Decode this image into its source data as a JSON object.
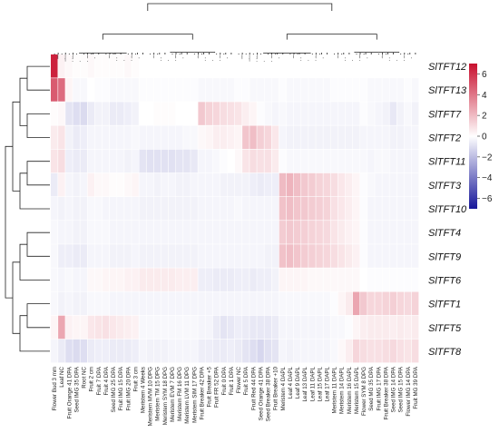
{
  "chart_data": {
    "type": "heatmap",
    "rows": [
      "SlTFT12",
      "SlTFT13",
      "SlTFT7",
      "SlTFT2",
      "SlTFT11",
      "SlTFT3",
      "SlTFT10",
      "SlTFT4",
      "SlTFT9",
      "SlTFT6",
      "SlTFT1",
      "SlTFT5",
      "SlTFT8"
    ],
    "columns": [
      "Flower Bud 3 mm",
      "Leaf NC",
      "Fruit Orange 41 DPA",
      "Seed IMG 35 DPA",
      "Root NC",
      "Fruit 2 cm",
      "Fruit 7 DPA",
      "Fruit 4 DPA",
      "Seed IMG 25 DPA",
      "Fruit IMG 15 DPA",
      "Fruit IMG 20 DPA",
      "Fruit 3 cm",
      "Meristem 4 Weeks",
      "Meristem MVM 10 DPG",
      "Meristem TM 15 DPG",
      "Meristem SYM 18 DPG",
      "Meristem EVM 7 DPG",
      "Meristem FM 16 DPG",
      "Meristem LVM 11 DPG",
      "Meristem SIM 17 DPG",
      "Fruit Breaker 42 DPA",
      "Fruit Breaker +5",
      "Fruit FR 52 DPA",
      "Fruit 0 DPA",
      "Fruit 1 DPA",
      "Flower NC",
      "Fruit 5 DPA",
      "Fruit Red 44 DPA",
      "Seed Orange 41 DPA",
      "Seed Breaker 38 DPA",
      "Fruit Breaker +10",
      "Meristem 4 DAPL",
      "Leaf 4 DAPL",
      "Leaf 9 DAPL",
      "Leaf 13 DAPL",
      "Leaf 11 DAPL",
      "Leaf 15 DAPL",
      "Leaf 17 DAPL",
      "Meristem 11 DAPL",
      "Meristem 14 DAPL",
      "Meristem 16 DAPL",
      "Meristem 15 DAPL",
      "Flower SYM 8 DPG",
      "Seed MG 35 DPA",
      "Fruit IMG 17 DPA",
      "Fruit Breaker 38 DPA",
      "Seed IMG 14 DPA",
      "Seed IMG 15 DPA",
      "Flower IMG 14 DPA",
      "Fruit MG 39 DPA"
    ],
    "values": [
      [
        6.5,
        0.4,
        0.2,
        0.1,
        0.1,
        0.2,
        0.1,
        0.1,
        0.1,
        0.1,
        0.2,
        0.1,
        0.0,
        0.0,
        0.0,
        0.0,
        0.0,
        0.0,
        0.0,
        0.0,
        0.0,
        0.0,
        0.0,
        0.0,
        0.0,
        0.0,
        0.0,
        0.0,
        0.0,
        0.0,
        0.0,
        0.0,
        0.0,
        0.0,
        0.0,
        0.0,
        0.0,
        0.0,
        0.0,
        0.0,
        0.0,
        0.0,
        0.0,
        0.0,
        0.0,
        0.0,
        0.0,
        0.0,
        0.0,
        0.0
      ],
      [
        4.8,
        4.3,
        0.3,
        -0.2,
        -0.2,
        0.0,
        -0.1,
        -0.1,
        -0.2,
        -0.2,
        -0.2,
        -0.2,
        -0.1,
        -0.1,
        -0.1,
        -0.1,
        -0.1,
        -0.1,
        -0.1,
        -0.1,
        -0.2,
        -0.2,
        -0.2,
        -0.2,
        -0.2,
        -0.1,
        -0.1,
        -0.2,
        -0.2,
        -0.2,
        -0.2,
        -0.1,
        -0.2,
        -0.2,
        -0.2,
        -0.2,
        -0.2,
        -0.2,
        -0.1,
        -0.1,
        -0.1,
        -0.1,
        -0.1,
        -0.2,
        -0.2,
        -0.2,
        -0.2,
        -0.2,
        -0.1,
        -0.2
      ],
      [
        0.1,
        0.2,
        -0.8,
        -1.0,
        -1.1,
        -0.6,
        -0.4,
        -0.4,
        -0.6,
        -0.6,
        -0.5,
        -0.4,
        0.0,
        0.0,
        0.1,
        0.1,
        0.1,
        0.0,
        0.0,
        0.0,
        1.6,
        1.3,
        1.2,
        1.0,
        0.9,
        0.8,
        0.5,
        0.3,
        -0.1,
        -0.2,
        -0.3,
        -0.2,
        -0.3,
        -0.3,
        -0.3,
        -0.3,
        -0.3,
        -0.3,
        -0.3,
        -0.3,
        -0.3,
        -0.3,
        -0.1,
        -0.2,
        -0.3,
        -0.4,
        -0.7,
        -0.4,
        -0.2,
        -0.4
      ],
      [
        0.6,
        0.8,
        -0.4,
        -0.6,
        -0.5,
        -0.3,
        -0.3,
        -0.3,
        -0.3,
        -0.3,
        -0.3,
        -0.2,
        -0.3,
        -0.3,
        -0.3,
        -0.3,
        -0.3,
        -0.3,
        -0.2,
        -0.2,
        0.2,
        0.3,
        0.5,
        0.5,
        0.4,
        0.3,
        1.7,
        1.9,
        1.4,
        1.2,
        0.7,
        -0.3,
        -0.4,
        -0.4,
        -0.4,
        -0.4,
        -0.4,
        -0.4,
        -0.4,
        -0.4,
        -0.4,
        -0.4,
        -0.3,
        -0.3,
        -0.3,
        -0.3,
        -0.4,
        -0.4,
        -0.3,
        -0.3
      ],
      [
        0.8,
        1.0,
        -0.5,
        -0.6,
        -0.6,
        -0.3,
        -0.3,
        -0.3,
        -0.3,
        -0.3,
        -0.4,
        -0.3,
        -0.8,
        -0.9,
        -0.9,
        -0.9,
        -0.9,
        -0.8,
        -0.8,
        -0.7,
        -0.3,
        -0.3,
        -0.2,
        -0.1,
        0.0,
        0.2,
        0.8,
        1.0,
        0.9,
        0.9,
        0.6,
        -0.1,
        -0.2,
        -0.2,
        -0.2,
        -0.2,
        -0.2,
        -0.2,
        -0.2,
        -0.2,
        -0.2,
        -0.2,
        -0.2,
        -0.3,
        -0.2,
        -0.2,
        -0.3,
        -0.3,
        -0.3,
        -0.3
      ],
      [
        -0.6,
        0.4,
        -0.3,
        -0.4,
        -0.3,
        0.4,
        0.2,
        0.2,
        0.1,
        0.1,
        0.2,
        0.3,
        -0.3,
        -0.3,
        -0.4,
        -0.3,
        -0.3,
        -0.4,
        -0.4,
        -0.3,
        -0.3,
        -0.3,
        -0.3,
        -0.4,
        -0.4,
        -0.4,
        -0.4,
        -0.5,
        -0.6,
        -0.5,
        -0.5,
        2.0,
        2.2,
        1.9,
        1.6,
        1.5,
        1.3,
        1.2,
        1.0,
        0.7,
        0.5,
        0.3,
        -0.1,
        -0.2,
        -0.3,
        -0.3,
        -0.3,
        -0.3,
        -0.3,
        -0.3
      ],
      [
        -0.3,
        -0.4,
        -0.3,
        -0.4,
        -0.4,
        -0.2,
        -0.2,
        -0.3,
        -0.3,
        -0.3,
        -0.3,
        -0.3,
        -0.4,
        -0.4,
        -0.4,
        -0.4,
        -0.4,
        -0.4,
        -0.4,
        -0.4,
        -0.3,
        -0.3,
        -0.3,
        -0.3,
        -0.3,
        -0.2,
        -0.3,
        -0.3,
        -0.3,
        -0.3,
        -0.3,
        1.8,
        1.9,
        1.7,
        1.6,
        1.5,
        1.4,
        1.3,
        0.9,
        0.7,
        0.5,
        0.3,
        -0.1,
        -0.3,
        -0.3,
        -0.3,
        -0.3,
        -0.3,
        -0.3,
        -0.3
      ],
      [
        -0.2,
        -0.3,
        -0.3,
        -0.4,
        -0.4,
        -0.2,
        -0.2,
        -0.2,
        -0.3,
        -0.3,
        -0.3,
        -0.3,
        -0.3,
        -0.3,
        -0.3,
        -0.3,
        -0.3,
        -0.3,
        -0.3,
        -0.3,
        -0.3,
        -0.3,
        -0.3,
        -0.3,
        -0.3,
        -0.3,
        -0.3,
        -0.3,
        -0.3,
        -0.3,
        -0.3,
        1.5,
        1.6,
        1.5,
        1.4,
        1.3,
        1.2,
        1.1,
        0.8,
        0.6,
        0.4,
        0.3,
        -0.1,
        -0.3,
        -0.3,
        -0.3,
        -0.3,
        -0.3,
        -0.3,
        -0.3
      ],
      [
        -0.2,
        -0.5,
        -0.5,
        -0.6,
        -0.6,
        -0.3,
        -0.3,
        -0.3,
        -0.4,
        -0.4,
        -0.4,
        -0.3,
        -0.4,
        -0.4,
        -0.4,
        -0.4,
        -0.4,
        -0.4,
        -0.4,
        -0.4,
        -0.3,
        -0.3,
        -0.3,
        -0.3,
        -0.3,
        -0.3,
        -0.3,
        -0.3,
        -0.3,
        -0.4,
        -0.4,
        1.8,
        1.9,
        1.7,
        1.5,
        1.4,
        1.3,
        1.2,
        1.0,
        0.8,
        0.6,
        0.4,
        -0.1,
        -0.3,
        -0.3,
        -0.3,
        -0.3,
        -0.3,
        -0.3,
        -0.3
      ],
      [
        -0.2,
        -0.3,
        -0.2,
        -0.3,
        -0.3,
        0.2,
        0.2,
        0.3,
        0.3,
        0.3,
        0.4,
        0.4,
        0.6,
        0.6,
        0.6,
        0.6,
        0.6,
        0.5,
        0.5,
        0.5,
        -0.5,
        -0.5,
        -0.6,
        -0.6,
        -0.6,
        -0.5,
        -0.5,
        -0.6,
        -0.5,
        -0.5,
        -0.4,
        0.3,
        0.3,
        0.3,
        0.3,
        0.2,
        0.2,
        0.2,
        0.2,
        0.2,
        0.2,
        0.2,
        0.0,
        -0.1,
        -0.1,
        -0.1,
        -0.1,
        -0.1,
        -0.1,
        -0.1
      ],
      [
        -0.2,
        -0.4,
        -0.3,
        -0.4,
        -0.4,
        -0.2,
        -0.2,
        -0.2,
        -0.3,
        -0.3,
        -0.3,
        -0.3,
        -0.3,
        -0.3,
        -0.3,
        -0.3,
        -0.3,
        -0.3,
        -0.3,
        -0.3,
        -0.3,
        -0.3,
        -0.3,
        -0.3,
        -0.3,
        -0.3,
        -0.3,
        -0.3,
        -0.3,
        -0.3,
        -0.3,
        -0.2,
        -0.2,
        -0.2,
        -0.2,
        -0.2,
        -0.2,
        -0.2,
        -0.1,
        0.3,
        0.6,
        2.6,
        1.6,
        1.2,
        1.2,
        1.3,
        1.4,
        1.2,
        1.1,
        1.3
      ],
      [
        0.3,
        2.6,
        0.4,
        0.3,
        0.3,
        0.7,
        0.8,
        0.9,
        0.7,
        0.6,
        0.5,
        0.4,
        -0.2,
        -0.2,
        -0.2,
        -0.2,
        -0.2,
        -0.2,
        -0.2,
        -0.2,
        -0.3,
        -0.3,
        -0.6,
        -0.8,
        -0.7,
        -0.5,
        -0.6,
        -0.7,
        -0.7,
        -0.7,
        -0.6,
        -0.3,
        -0.3,
        -0.3,
        -0.3,
        -0.3,
        -0.3,
        -0.3,
        -0.2,
        -0.2,
        -0.1,
        0.3,
        0.5,
        0.6,
        0.6,
        0.6,
        0.5,
        0.6,
        0.5,
        0.6
      ],
      [
        -0.3,
        -0.6,
        -1.0,
        -1.1,
        -1.0,
        -0.6,
        -0.5,
        -0.5,
        -0.6,
        -0.6,
        -0.6,
        -0.5,
        -0.3,
        -0.4,
        -0.4,
        -0.4,
        -0.3,
        -0.3,
        -0.3,
        -0.3,
        -0.5,
        -0.5,
        -0.6,
        -0.6,
        -0.5,
        -0.6,
        -0.8,
        -1.0,
        -1.2,
        -0.9,
        -0.8,
        -0.3,
        -0.4,
        -0.3,
        -0.3,
        -0.3,
        -0.3,
        -0.3,
        -0.2,
        0.2,
        0.5,
        1.2,
        1.0,
        0.9,
        0.9,
        1.0,
        1.1,
        0.9,
        0.8,
        1.0
      ]
    ],
    "colorbar": {
      "ticks": [
        "6",
        "4",
        "2",
        "0",
        "−2",
        "−4",
        "−6"
      ],
      "range": [
        -7,
        7
      ],
      "colors": {
        "low": "#17179a",
        "mid": "#ffffff",
        "high": "#c8102e"
      }
    },
    "dendrograms": {
      "rows": true,
      "columns": true
    }
  }
}
